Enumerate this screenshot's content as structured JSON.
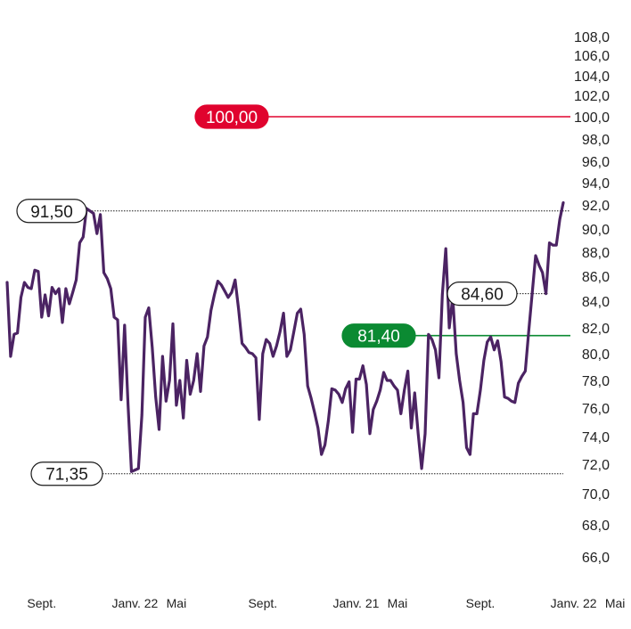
{
  "chart_data": {
    "type": "line",
    "title": "",
    "xlabel": "",
    "ylabel": "",
    "ylim": [
      64.5,
      109.0
    ],
    "y_axis_position": "right",
    "y_ticks": [
      {
        "value": 108.0,
        "label": "108,0"
      },
      {
        "value": 106.0,
        "label": "106,0"
      },
      {
        "value": 104.0,
        "label": "104,0"
      },
      {
        "value": 102.0,
        "label": "102,0"
      },
      {
        "value": 100.0,
        "label": "100,0"
      },
      {
        "value": 98.0,
        "label": "98,0"
      },
      {
        "value": 96.0,
        "label": "96,0"
      },
      {
        "value": 94.0,
        "label": "94,0"
      },
      {
        "value": 92.0,
        "label": "92,0"
      },
      {
        "value": 90.0,
        "label": "90,0"
      },
      {
        "value": 88.0,
        "label": "88,0"
      },
      {
        "value": 86.0,
        "label": "86,0"
      },
      {
        "value": 84.0,
        "label": "84,0"
      },
      {
        "value": 82.0,
        "label": "82,0"
      },
      {
        "value": 80.0,
        "label": "80,0"
      },
      {
        "value": 78.0,
        "label": "78,0"
      },
      {
        "value": 76.0,
        "label": "76,0"
      },
      {
        "value": 74.0,
        "label": "74,0"
      },
      {
        "value": 72.0,
        "label": "72,0"
      },
      {
        "value": 70.0,
        "label": "70,0"
      },
      {
        "value": 68.0,
        "label": "68,0"
      },
      {
        "value": 66.0,
        "label": "66,0"
      }
    ],
    "x_tick_labels": [
      {
        "index": 10,
        "label": "Sept."
      },
      {
        "index": 37,
        "label": "Janv. 22"
      },
      {
        "index": 49,
        "label": "Mai"
      },
      {
        "index": 74,
        "label": "Sept."
      },
      {
        "index": 101,
        "label": "Janv. 21"
      },
      {
        "index": 113,
        "label": "Mai"
      },
      {
        "index": 137,
        "label": "Sept."
      },
      {
        "index": 164,
        "label": "Janv. 22"
      },
      {
        "index": 176,
        "label": "Mai"
      }
    ],
    "series": [
      {
        "color": "#4b2363",
        "values": [
          85.5,
          79.8,
          81.5,
          81.6,
          84.3,
          85.5,
          85.1,
          85.0,
          86.5,
          86.4,
          82.8,
          84.5,
          82.9,
          85.1,
          84.6,
          85.0,
          82.4,
          85.0,
          83.8,
          84.7,
          85.7,
          88.8,
          89.3,
          91.7,
          91.5,
          91.3,
          89.6,
          91.2,
          86.3,
          85.8,
          85.0,
          82.8,
          82.6,
          76.6,
          82.2,
          76.2,
          71.5,
          71.6,
          71.7,
          75.5,
          82.8,
          83.5,
          80.5,
          76.8,
          74.5,
          79.8,
          76.5,
          78.0,
          82.3,
          76.2,
          78.0,
          75.3,
          79.5,
          77.0,
          78.0,
          80.0,
          77.2,
          80.6,
          81.3,
          83.3,
          84.5,
          85.6,
          85.3,
          84.8,
          84.3,
          84.7,
          85.7,
          83.4,
          80.8,
          80.5,
          80.1,
          80.0,
          79.7,
          75.2,
          80.0,
          81.1,
          80.8,
          79.8,
          80.6,
          81.7,
          83.1,
          79.8,
          80.3,
          81.7,
          83.1,
          83.4,
          81.5,
          77.6,
          76.7,
          75.7,
          74.6,
          72.7,
          73.4,
          75.1,
          77.4,
          77.3,
          77.0,
          76.4,
          77.4,
          77.9,
          74.3,
          78.1,
          78.1,
          79.1,
          77.7,
          74.2,
          75.9,
          76.5,
          77.3,
          78.6,
          78.0,
          78.0,
          77.6,
          77.3,
          75.6,
          77.3,
          78.7,
          74.6,
          77.1,
          74.2,
          71.7,
          74.2,
          81.5,
          81.1,
          80.3,
          78.2,
          84.5,
          88.3,
          82.0,
          84.3,
          80.0,
          78.0,
          76.4,
          73.2,
          72.7,
          75.6,
          75.6,
          77.3,
          79.5,
          80.9,
          81.3,
          80.3,
          81.0,
          79.4,
          76.8,
          76.7,
          76.5,
          76.4,
          77.8,
          78.3,
          78.7,
          81.7,
          84.6,
          87.7,
          86.9,
          86.3,
          84.6,
          88.8,
          88.6,
          88.6,
          90.8,
          92.2
        ]
      }
    ],
    "reference_lines": [
      {
        "value": 100.0,
        "label": "100,00",
        "color": "#e0032e",
        "style": "solid",
        "callout_style": "filled",
        "text_color": "#ffffff"
      },
      {
        "value": 91.5,
        "label": "91,50",
        "color": "#1a1a1a",
        "style": "dotted",
        "callout_style": "outline",
        "text_color": "#1a1a1a"
      },
      {
        "value": 84.6,
        "label": "84,60",
        "color": "#1a1a1a",
        "style": "dotted",
        "callout_style": "outline",
        "text_color": "#1a1a1a"
      },
      {
        "value": 81.4,
        "label": "81,40",
        "color": "#0b8a32",
        "style": "solid",
        "callout_style": "filled",
        "text_color": "#ffffff"
      },
      {
        "value": 71.35,
        "label": "71,35",
        "color": "#1a1a1a",
        "style": "dotted",
        "callout_style": "outline",
        "text_color": "#1a1a1a"
      }
    ],
    "grid": false,
    "legend": "none"
  }
}
